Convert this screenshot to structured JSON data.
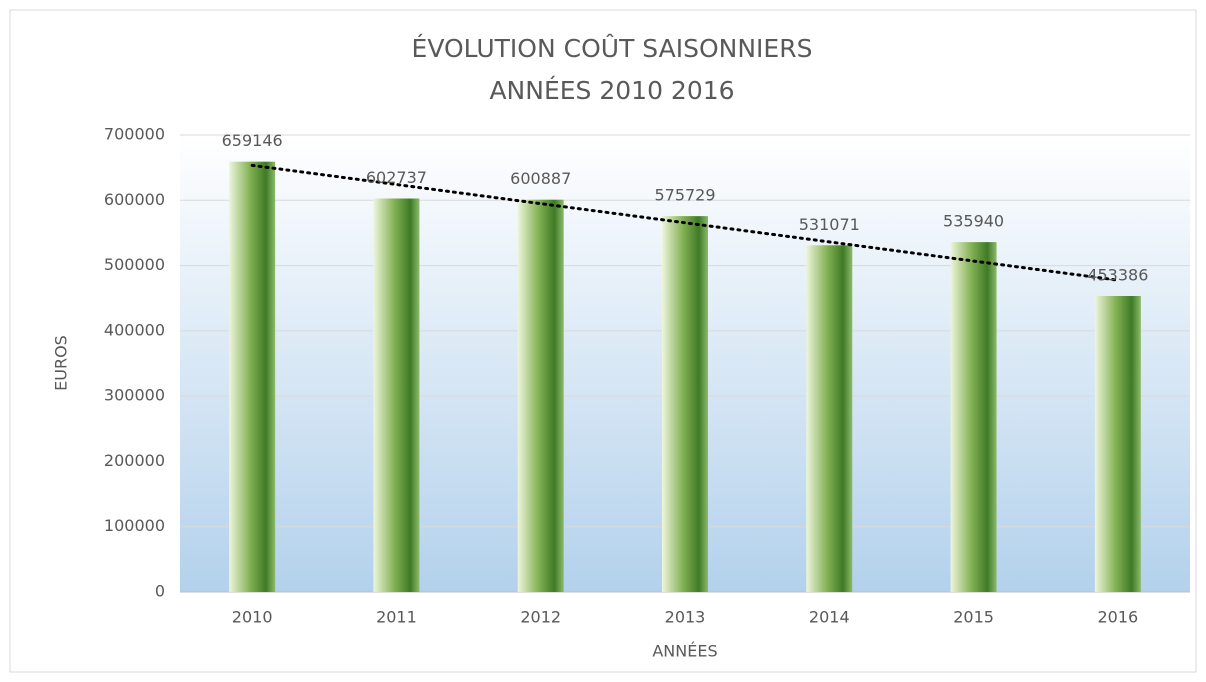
{
  "chart_data": {
    "type": "bar",
    "title": "ÉVOLUTION COÛT SAISONNIERS",
    "subtitle": "ANNÉES 2010  2016",
    "x_label": "ANNÉES",
    "y_label": "EUROS",
    "categories": [
      "2010",
      "2011",
      "2012",
      "2013",
      "2014",
      "2015",
      "2016"
    ],
    "values": [
      659146,
      602737,
      600887,
      575729,
      531071,
      535940,
      453386
    ],
    "color": "#5a9236",
    "trendline": "linear",
    "ylim": [
      0,
      700000
    ],
    "yticks": [
      0,
      100000,
      200000,
      300000,
      400000,
      500000,
      600000,
      700000
    ],
    "grid": true
  }
}
